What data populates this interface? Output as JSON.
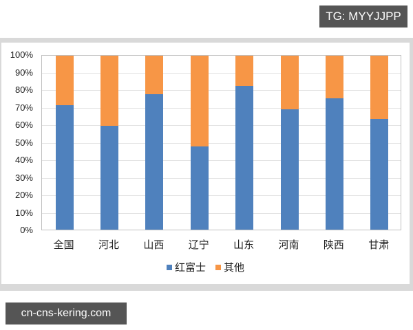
{
  "watermarks": {
    "top": "TG: MYYJJPP",
    "bottom": "cn-cns-kering.com"
  },
  "colors": {
    "fuji": "#4f81bd",
    "other": "#f79646",
    "grid": "#e3e3e3",
    "frame": "#d9d9d9"
  },
  "chart_data": {
    "type": "bar",
    "stacked": true,
    "percent": true,
    "title": "",
    "xlabel": "",
    "ylabel": "",
    "ylim": [
      0,
      100
    ],
    "yticks": [
      "0%",
      "10%",
      "20%",
      "30%",
      "40%",
      "50%",
      "60%",
      "70%",
      "80%",
      "90%",
      "100%"
    ],
    "grid": true,
    "legend_position": "bottom",
    "categories": [
      "全国",
      "河北",
      "山西",
      "辽宁",
      "山东",
      "河南",
      "陕西",
      "甘肃"
    ],
    "series": [
      {
        "name": "红富士",
        "color": "#4f81bd",
        "values": [
          71.5,
          59.5,
          78,
          48,
          82.5,
          69,
          75.5,
          63.5
        ]
      },
      {
        "name": "其他",
        "color": "#f79646",
        "values": [
          28.5,
          40.5,
          22,
          52,
          17.5,
          31,
          24.5,
          36.5
        ]
      }
    ]
  }
}
